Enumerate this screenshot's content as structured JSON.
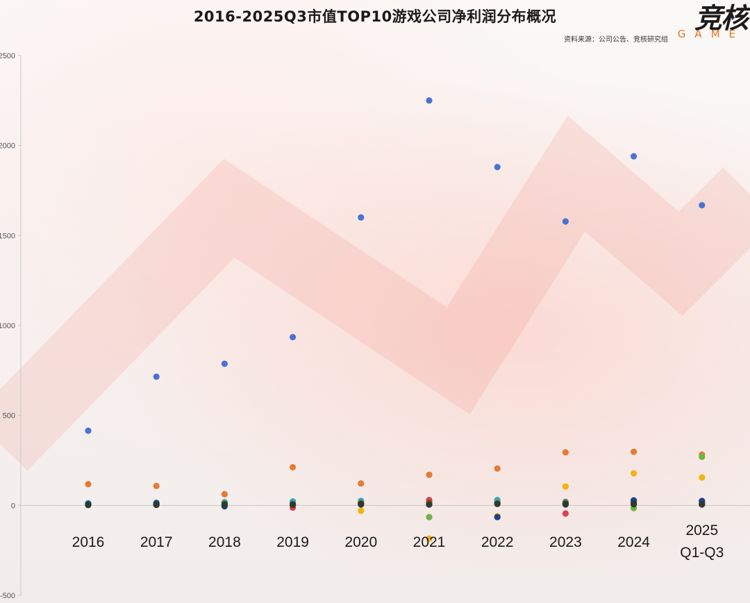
{
  "header": {
    "title": "2016-2025Q3市值TOP10游戏公司净利润分布概况",
    "source": "资料来源：公司公告、竞核研究组",
    "logo_main": "竞核",
    "logo_sub": "GAME"
  },
  "chart_data": {
    "type": "scatter",
    "title": "2016-2025Q3市值TOP10游戏公司净利润分布概况",
    "xlabel": "",
    "ylabel": "",
    "ylim": [
      -500,
      2500
    ],
    "yticks": [
      -500,
      0,
      500,
      1000,
      1500,
      2000,
      2500
    ],
    "ytick_labels": [
      "-500",
      "0",
      "500",
      "1000",
      "1500",
      "2000",
      "2500"
    ],
    "categories": [
      "2016",
      "2017",
      "2018",
      "2019",
      "2020",
      "2021",
      "2022",
      "2023",
      "2024",
      "2025 Q1-Q3"
    ],
    "category_lines": [
      [
        "2016"
      ],
      [
        "2017"
      ],
      [
        "2018"
      ],
      [
        "2019"
      ],
      [
        "2020"
      ],
      [
        "2021"
      ],
      [
        "2022"
      ],
      [
        "2023"
      ],
      [
        "2024"
      ],
      [
        "2025",
        "Q1-Q3"
      ]
    ],
    "grid": false,
    "series": [
      {
        "color": "#4a72d4",
        "values": [
          415,
          715,
          787,
          935,
          1600,
          2250,
          1880,
          1578,
          1940,
          1668
        ]
      },
      {
        "color": "#e77a34",
        "values": [
          118,
          108,
          62,
          212,
          122,
          170,
          205,
          295,
          298,
          282
        ]
      },
      {
        "color": "#f0b410",
        "values": [
          8,
          5,
          4,
          14,
          -30,
          -185,
          -60,
          105,
          178,
          155
        ]
      },
      {
        "color": "#6db544",
        "values": [
          6,
          8,
          15,
          10,
          20,
          -65,
          15,
          12,
          -15,
          270
        ]
      },
      {
        "color": "#d94356",
        "values": [
          10,
          10,
          5,
          -12,
          15,
          30,
          20,
          -45,
          20,
          25
        ]
      },
      {
        "color": "#38a8b8",
        "values": [
          12,
          15,
          18,
          22,
          25,
          10,
          30,
          20,
          25,
          22
        ]
      },
      {
        "color": "#b04020",
        "values": [
          4,
          3,
          2,
          6,
          12,
          18,
          10,
          14,
          15,
          12
        ]
      },
      {
        "color": "#557a2e",
        "values": [
          5,
          4,
          10,
          8,
          10,
          8,
          12,
          10,
          10,
          8
        ]
      },
      {
        "color": "#1f3f8a",
        "values": [
          8,
          12,
          -5,
          5,
          5,
          5,
          -65,
          5,
          28,
          24
        ]
      },
      {
        "color": "#2f3a2a",
        "values": [
          2,
          3,
          5,
          3,
          8,
          5,
          8,
          8,
          6,
          5
        ]
      }
    ]
  }
}
